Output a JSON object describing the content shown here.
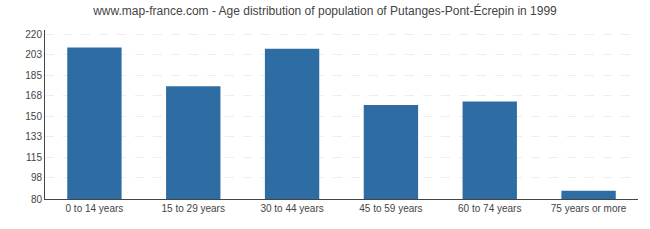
{
  "chart_data": {
    "type": "bar",
    "title": "www.map-france.com - Age distribution of population of Putanges-Pont-Écrepin in 1999",
    "categories": [
      "0 to 14 years",
      "15 to 29 years",
      "30 to 44 years",
      "45 to 59 years",
      "60 to 74 years",
      "75 years or more"
    ],
    "values": [
      209,
      176,
      208,
      160,
      163,
      87
    ],
    "color": "#2e6da4",
    "ylim": [
      80,
      224
    ],
    "yticks": [
      80,
      98,
      115,
      133,
      150,
      168,
      185,
      203,
      220
    ],
    "grid": true
  }
}
